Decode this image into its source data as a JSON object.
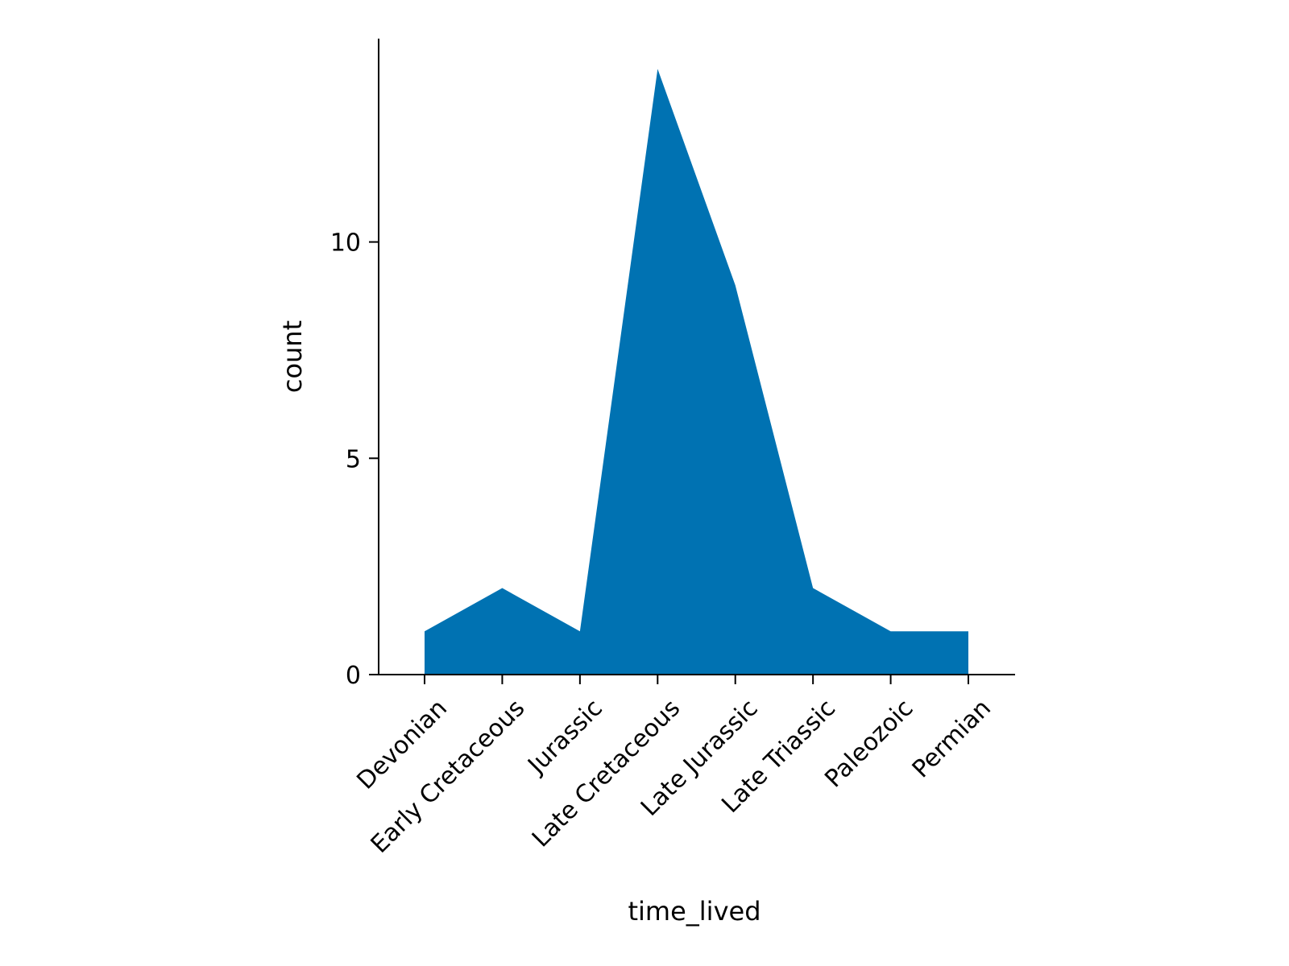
{
  "chart_data": {
    "type": "area",
    "title": "",
    "xlabel": "time_lived",
    "ylabel": "count",
    "categories": [
      "Devonian",
      "Early Cretaceous",
      "Jurassic",
      "Late Cretaceous",
      "Late Jurassic",
      "Late Triassic",
      "Paleozoic",
      "Permian"
    ],
    "values": [
      1,
      2,
      1,
      14,
      9,
      2,
      1,
      1
    ],
    "yticks": [
      0,
      5,
      10
    ],
    "ylim": [
      0,
      14.7
    ],
    "grid": false,
    "legend": "none",
    "color": "#0072b2"
  }
}
